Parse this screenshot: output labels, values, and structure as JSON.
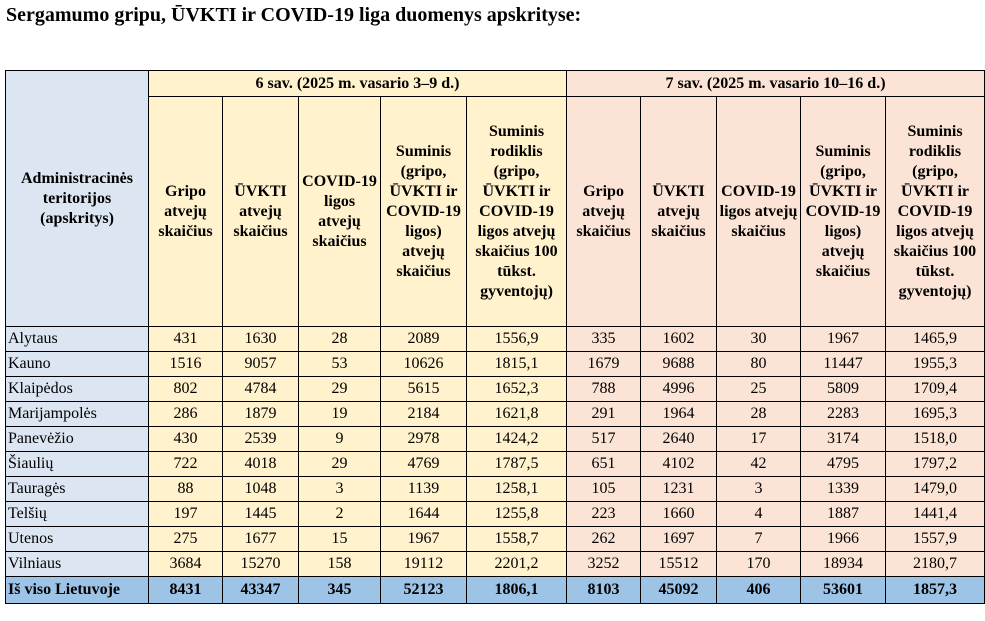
{
  "title": "Sergamumo gripu, ŪVKTI ir COVID-19 liga duomenys apskrityse:",
  "table": {
    "first_header": "Administracinės teritorijos (apskritys)",
    "weeks": [
      {
        "label": "6 sav. (2025 m. vasario 3–9 d.)"
      },
      {
        "label": "7 sav. (2025 m. vasario 10–16 d.)"
      }
    ],
    "columns": [
      "Gripo atvejų skaičius",
      "ŪVKTI atvejų skaičius",
      "COVID-19 ligos atvejų skaičius",
      "Suminis (gripo, ŪVKTI ir COVID-19 ligos) atvejų skaičius",
      "Suminis rodiklis (gripo, ŪVKTI ir COVID-19 ligos atvejų skaičius 100 tūkst. gyventojų)"
    ],
    "rows": [
      {
        "name": "Alytaus",
        "w6": [
          "431",
          "1630",
          "28",
          "2089",
          "1556,9"
        ],
        "w7": [
          "335",
          "1602",
          "30",
          "1967",
          "1465,9"
        ]
      },
      {
        "name": "Kauno",
        "w6": [
          "1516",
          "9057",
          "53",
          "10626",
          "1815,1"
        ],
        "w7": [
          "1679",
          "9688",
          "80",
          "11447",
          "1955,3"
        ]
      },
      {
        "name": "Klaipėdos",
        "w6": [
          "802",
          "4784",
          "29",
          "5615",
          "1652,3"
        ],
        "w7": [
          "788",
          "4996",
          "25",
          "5809",
          "1709,4"
        ]
      },
      {
        "name": "Marijampolės",
        "w6": [
          "286",
          "1879",
          "19",
          "2184",
          "1621,8"
        ],
        "w7": [
          "291",
          "1964",
          "28",
          "2283",
          "1695,3"
        ]
      },
      {
        "name": "Panevėžio",
        "w6": [
          "430",
          "2539",
          "9",
          "2978",
          "1424,2"
        ],
        "w7": [
          "517",
          "2640",
          "17",
          "3174",
          "1518,0"
        ]
      },
      {
        "name": "Šiaulių",
        "w6": [
          "722",
          "4018",
          "29",
          "4769",
          "1787,5"
        ],
        "w7": [
          "651",
          "4102",
          "42",
          "4795",
          "1797,2"
        ]
      },
      {
        "name": "Tauragės",
        "w6": [
          "88",
          "1048",
          "3",
          "1139",
          "1258,1"
        ],
        "w7": [
          "105",
          "1231",
          "3",
          "1339",
          "1479,0"
        ]
      },
      {
        "name": "Telšių",
        "w6": [
          "197",
          "1445",
          "2",
          "1644",
          "1255,8"
        ],
        "w7": [
          "223",
          "1660",
          "4",
          "1887",
          "1441,4"
        ]
      },
      {
        "name": "Utenos",
        "w6": [
          "275",
          "1677",
          "15",
          "1967",
          "1558,7"
        ],
        "w7": [
          "262",
          "1697",
          "7",
          "1966",
          "1557,9"
        ]
      },
      {
        "name": "Vilniaus",
        "w6": [
          "3684",
          "15270",
          "158",
          "19112",
          "2201,2"
        ],
        "w7": [
          "3252",
          "15512",
          "170",
          "18934",
          "2180,7"
        ]
      }
    ],
    "total": {
      "name": "Iš viso Lietuvoje",
      "w6": [
        "8431",
        "43347",
        "345",
        "52123",
        "1806,1"
      ],
      "w7": [
        "8103",
        "45092",
        "406",
        "53601",
        "1857,3"
      ]
    }
  }
}
